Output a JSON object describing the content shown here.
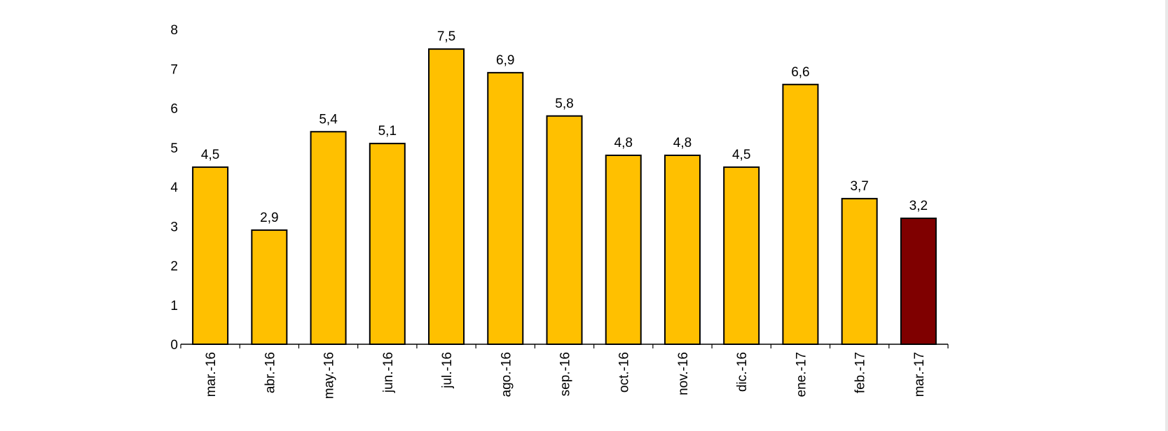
{
  "chart_data": {
    "type": "bar",
    "title": "",
    "xlabel": "",
    "ylabel": "",
    "ylim": [
      0,
      8
    ],
    "yticks": [
      0,
      1,
      2,
      3,
      4,
      5,
      6,
      7,
      8
    ],
    "grid": false,
    "legend": "none",
    "categories": [
      "mar.-16",
      "abr.-16",
      "may.-16",
      "jun.-16",
      "jul.-16",
      "ago.-16",
      "sep.-16",
      "oct.-16",
      "nov.-16",
      "dic.-16",
      "ene.-17",
      "feb.-17",
      "mar.-17"
    ],
    "values": [
      4.5,
      2.9,
      5.4,
      5.1,
      7.5,
      6.9,
      5.8,
      4.8,
      4.8,
      4.5,
      6.6,
      3.7,
      3.2
    ],
    "data_labels": [
      "4,5",
      "2,9",
      "5,4",
      "5,1",
      "7,5",
      "6,9",
      "5,8",
      "4,8",
      "4,8",
      "4,5",
      "6,6",
      "3,7",
      "3,2"
    ],
    "colors": {
      "bar": "#FFC000",
      "highlight": "#7F0000",
      "outline": "#000000"
    },
    "highlight_index": 12
  }
}
